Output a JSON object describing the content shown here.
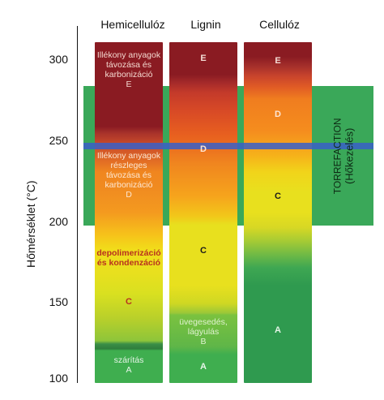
{
  "axis": {
    "title": "Hőmérséklet (°C)",
    "ticks": [
      "100",
      "150",
      "200",
      "250",
      "300"
    ],
    "tick_values": [
      100,
      150,
      200,
      250,
      300
    ]
  },
  "columns": [
    {
      "id": "hemicellulose",
      "header": "Hemicellulóz",
      "stages": [
        {
          "range": [
            280,
            305
          ],
          "label": "Illékony anyagok távozása és karbonizáció",
          "letter": "E",
          "color": "#8e1f1f"
        },
        {
          "range": [
            200,
            250
          ],
          "label": "Illékony anyagok részleges távozása és karbonizáció",
          "letter": "D",
          "color": "#f0861f"
        },
        {
          "range": [
            150,
            200
          ],
          "label": "depolimerizáció és kondenzáció",
          "letter": "C",
          "color": "#e8d81a"
        },
        {
          "range": [
            100,
            125
          ],
          "label": "szárítás",
          "letter": "A",
          "color": "#3fae4f"
        }
      ]
    },
    {
      "id": "lignin",
      "header": "Lignin",
      "stages": [
        {
          "range": [
            285,
            305
          ],
          "label": "",
          "letter": "E",
          "color": "#8e1f1f"
        },
        {
          "range": [
            200,
            285
          ],
          "label": "",
          "letter": "D",
          "color": "#f07d1f"
        },
        {
          "range": [
            140,
            200
          ],
          "label": "",
          "letter": "C",
          "color": "#e8e01e"
        },
        {
          "range": [
            115,
            140
          ],
          "label": "üvegesedés, lágyulás",
          "letter": "B",
          "color": "#7bc23f"
        },
        {
          "range": [
            100,
            115
          ],
          "label": "",
          "letter": "A",
          "color": "#3fae4f"
        }
      ]
    },
    {
      "id": "cellulose",
      "header": "Cellulóz",
      "stages": [
        {
          "range": [
            285,
            305
          ],
          "label": "",
          "letter": "E",
          "color": "#8e1f1f"
        },
        {
          "range": [
            240,
            285
          ],
          "label": "",
          "letter": "D",
          "color": "#f07d1f"
        },
        {
          "range": [
            185,
            240
          ],
          "label": "",
          "letter": "C",
          "color": "#e8e01e"
        },
        {
          "range": [
            100,
            185
          ],
          "label": "",
          "letter": "A",
          "color": "#2f9a4f"
        }
      ]
    }
  ],
  "torrefaction": {
    "label_line1": "TORREFACTION",
    "label_line2": "(Hőkezelés)",
    "range": [
      200,
      280
    ],
    "center_line": 250,
    "color": "#3aa859",
    "line_color": "#3a5fc8"
  }
}
